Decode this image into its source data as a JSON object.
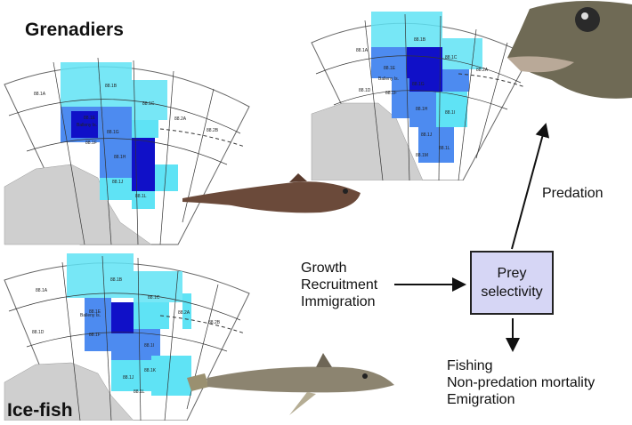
{
  "labels": {
    "grenadiers": "Grenadiers",
    "icefish": "Ice-fish"
  },
  "flow": {
    "inputs": [
      "Growth",
      "Recruitment",
      "Immigration"
    ],
    "box_lines": [
      "Prey",
      "selectivity"
    ],
    "predation": "Predation",
    "outputs": [
      "Fishing",
      "Non-predation mortality",
      "Emigration"
    ]
  },
  "map_areas": [
    "88.1A",
    "88.1B",
    "88.1C",
    "88.2A",
    "88.2B",
    "88.1D",
    "88.1E",
    "88.1F",
    "88.1G",
    "88.1H",
    "88.1I",
    "88.1J",
    "88.1K",
    "88.1L",
    "88.1M"
  ],
  "map_places": [
    "Balleny Is."
  ],
  "colors": {
    "light_cell": "#5fe3f5",
    "mid_cell": "#4d8bf0",
    "dark_cell": "#1010c8",
    "land": "#cfcfcf",
    "box_fill": "#d6d6f5"
  }
}
